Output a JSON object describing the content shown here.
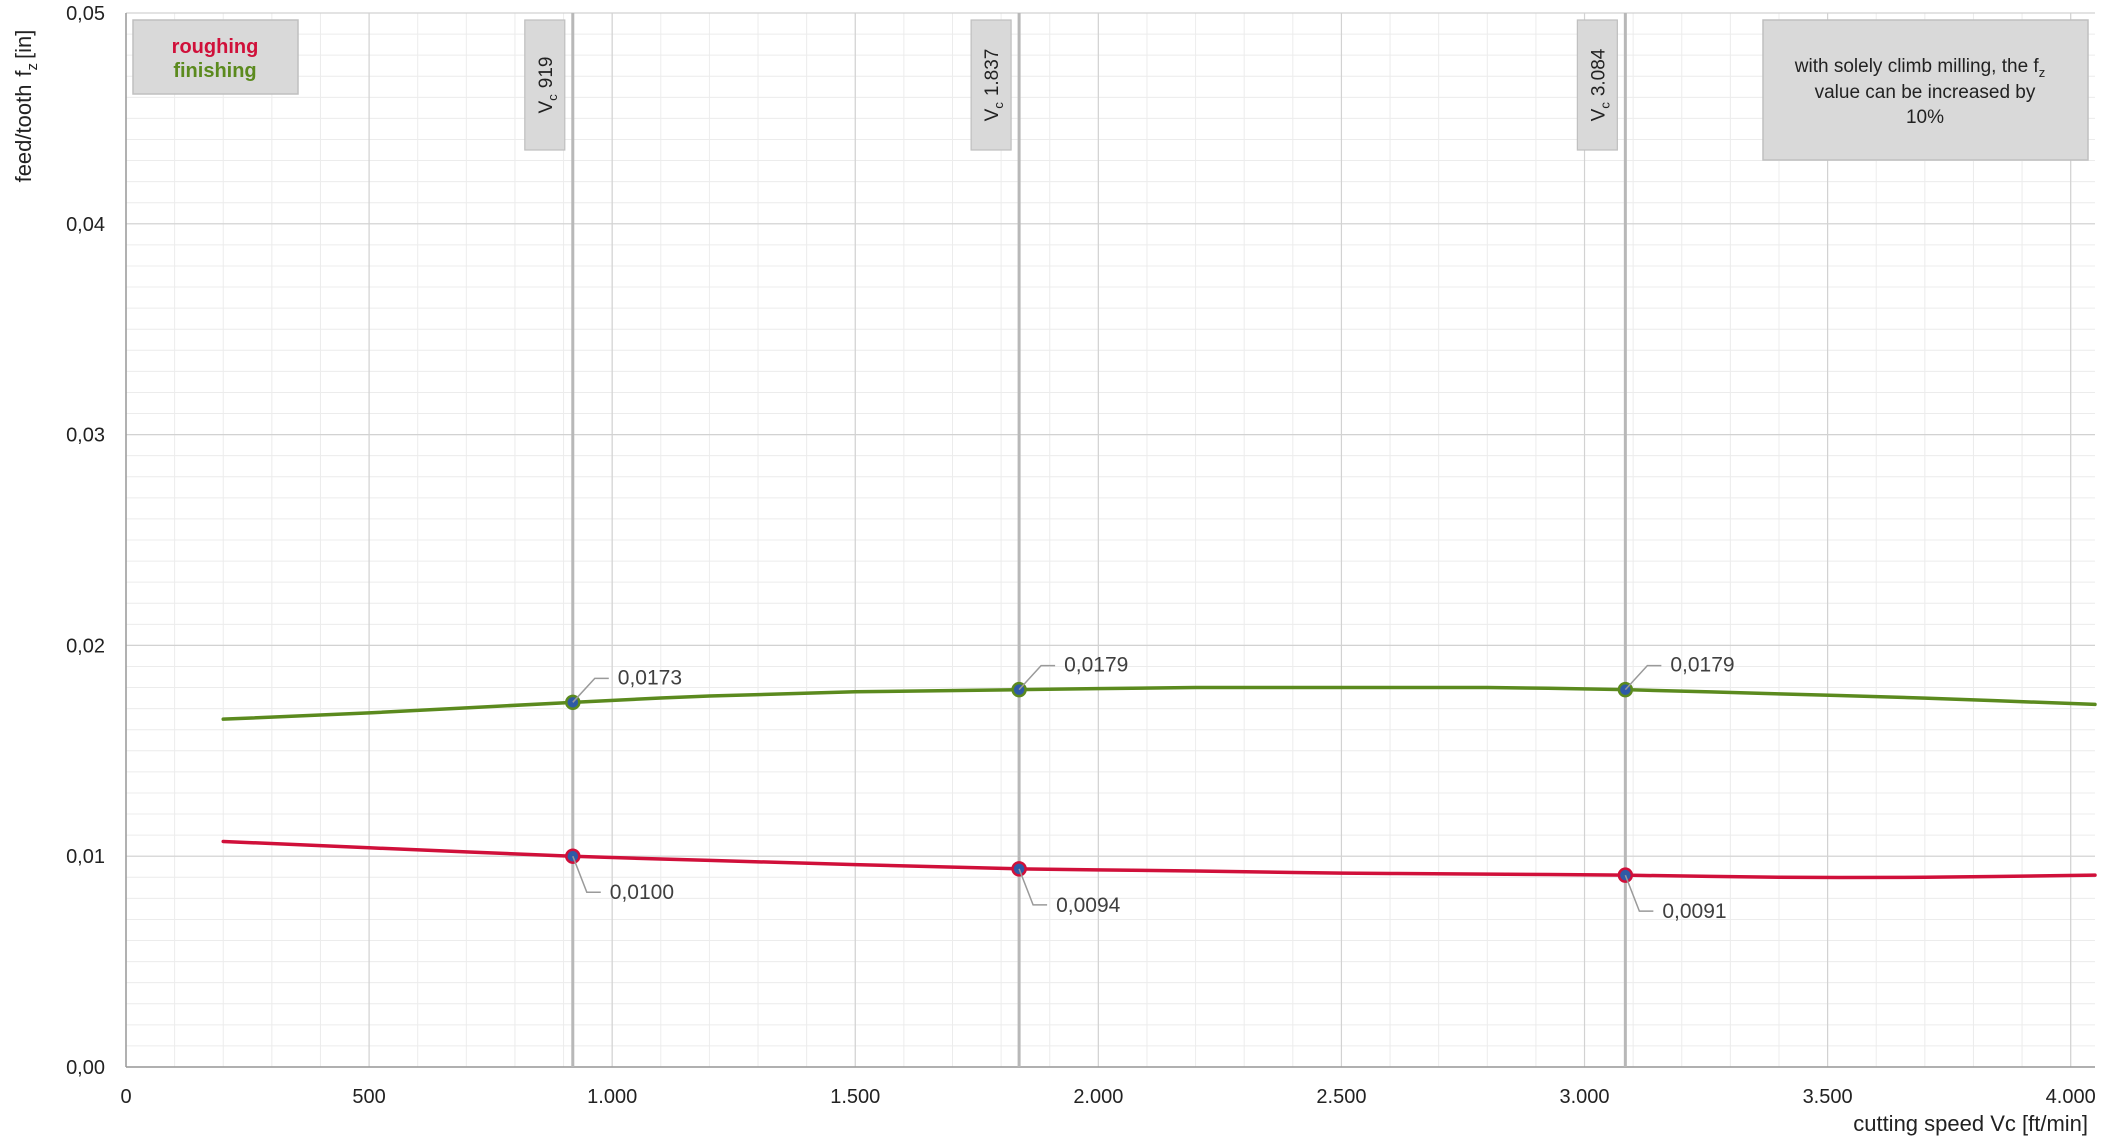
{
  "chart_data": {
    "type": "line",
    "xlabel": "cutting speed Vc [ft/min]",
    "ylabel": "feed/tooth",
    "ylabel_symbol": "f",
    "ylabel_sub": "z",
    "ylabel_unit": "[in]",
    "xlim": [
      0,
      4050
    ],
    "ylim": [
      0,
      0.05
    ],
    "x_ticks": [
      0,
      500,
      1000,
      1500,
      2000,
      2500,
      3000,
      3500,
      4000
    ],
    "x_tick_labels": [
      "0",
      "500",
      "1.000",
      "1.500",
      "2.000",
      "2.500",
      "3.000",
      "3.500",
      "4.000"
    ],
    "y_ticks": [
      0,
      0.01,
      0.02,
      0.03,
      0.04,
      0.05
    ],
    "y_tick_labels": [
      "0,00",
      "0,01",
      "0,02",
      "0,03",
      "0,04",
      "0,05"
    ],
    "grid": true,
    "legend_position": "top-left",
    "series": [
      {
        "name": "roughing",
        "color": "#d0103a",
        "x": [
          200,
          500,
          919,
          1200,
          1500,
          1837,
          2200,
          2500,
          2800,
          3084,
          3400,
          3700,
          4050
        ],
        "y": [
          0.0107,
          0.0104,
          0.01,
          0.0098,
          0.0096,
          0.0094,
          0.0093,
          0.0092,
          0.00915,
          0.0091,
          0.009,
          0.009,
          0.0091
        ]
      },
      {
        "name": "finishing",
        "color": "#5b8a1e",
        "x": [
          200,
          500,
          919,
          1200,
          1500,
          1837,
          2200,
          2500,
          2800,
          3084,
          3400,
          3700,
          4050
        ],
        "y": [
          0.0165,
          0.0168,
          0.0173,
          0.0176,
          0.0178,
          0.0179,
          0.018,
          0.018,
          0.018,
          0.0179,
          0.0177,
          0.0175,
          0.0172
        ]
      }
    ],
    "markers": [
      {
        "vc_value": 919,
        "vc_label": "919",
        "label_symbol": "V",
        "label_sub": "c",
        "roughing": 0.01,
        "roughing_label": "0,0100",
        "finishing": 0.0173,
        "finishing_label": "0,0173"
      },
      {
        "vc_value": 1837,
        "vc_label": "1.837",
        "label_symbol": "V",
        "label_sub": "c",
        "roughing": 0.0094,
        "roughing_label": "0,0094",
        "finishing": 0.0179,
        "finishing_label": "0,0179"
      },
      {
        "vc_value": 3084,
        "vc_label": "3.084",
        "label_symbol": "V",
        "label_sub": "c",
        "roughing": 0.0091,
        "roughing_label": "0,0091",
        "finishing": 0.0179,
        "finishing_label": "0,0179"
      }
    ],
    "marker_colors": {
      "point_fill": "#2e5aa6",
      "vline": "#b8b8b8"
    },
    "note": {
      "line1": "with solely climb milling, the f",
      "line1_sub": "z",
      "line2": "value can be increased by",
      "line3": "10%"
    }
  }
}
